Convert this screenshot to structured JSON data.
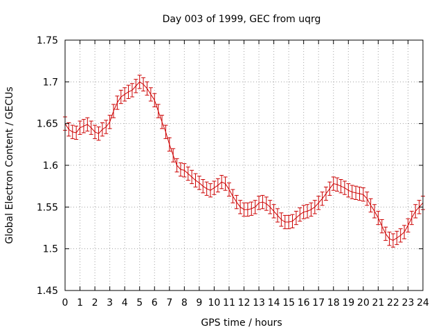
{
  "chart_data": {
    "type": "line",
    "title": "Day 003 of 1999, GEC from uqrg",
    "xlabel": "GPS time / hours",
    "ylabel": "Global Electron Content / GECUs",
    "xlim": [
      0,
      24
    ],
    "ylim": [
      1.45,
      1.75
    ],
    "grid": true,
    "series_color": "#cc0000",
    "x_ticks": [
      "0",
      "1",
      "2",
      "3",
      "4",
      "5",
      "6",
      "7",
      "8",
      "9",
      "10",
      "11",
      "12",
      "13",
      "14",
      "15",
      "16",
      "17",
      "18",
      "19",
      "20",
      "21",
      "22",
      "23",
      "24"
    ],
    "y_ticks": [
      "1.45",
      "1.5",
      "1.55",
      "1.6",
      "1.65",
      "1.7",
      "1.75"
    ],
    "error": 0.008,
    "series": [
      {
        "name": "GEC",
        "x": [
          0,
          0.25,
          0.5,
          0.75,
          1,
          1.25,
          1.5,
          1.75,
          2,
          2.25,
          2.5,
          2.75,
          3,
          3.25,
          3.5,
          3.75,
          4,
          4.25,
          4.5,
          4.75,
          5,
          5.25,
          5.5,
          5.75,
          6,
          6.25,
          6.5,
          6.75,
          7,
          7.25,
          7.5,
          7.75,
          8,
          8.25,
          8.5,
          8.75,
          9,
          9.25,
          9.5,
          9.75,
          10,
          10.25,
          10.5,
          10.75,
          11,
          11.25,
          11.5,
          11.75,
          12,
          12.25,
          12.5,
          12.75,
          13,
          13.25,
          13.5,
          13.75,
          14,
          14.25,
          14.5,
          14.75,
          15,
          15.25,
          15.5,
          15.75,
          16,
          16.25,
          16.5,
          16.75,
          17,
          17.25,
          17.5,
          17.75,
          18,
          18.25,
          18.5,
          18.75,
          19,
          19.25,
          19.5,
          19.75,
          20,
          20.25,
          20.5,
          20.75,
          21,
          21.25,
          21.5,
          21.75,
          22,
          22.25,
          22.5,
          22.75,
          23,
          23.25,
          23.5,
          23.75,
          24
        ],
        "values": [
          1.65,
          1.643,
          1.64,
          1.639,
          1.645,
          1.647,
          1.649,
          1.645,
          1.64,
          1.638,
          1.643,
          1.646,
          1.652,
          1.665,
          1.675,
          1.682,
          1.685,
          1.688,
          1.69,
          1.695,
          1.7,
          1.697,
          1.692,
          1.685,
          1.678,
          1.665,
          1.652,
          1.64,
          1.625,
          1.612,
          1.6,
          1.595,
          1.594,
          1.59,
          1.586,
          1.582,
          1.579,
          1.575,
          1.572,
          1.57,
          1.573,
          1.576,
          1.58,
          1.578,
          1.571,
          1.563,
          1.556,
          1.55,
          1.547,
          1.547,
          1.548,
          1.55,
          1.555,
          1.556,
          1.554,
          1.55,
          1.545,
          1.54,
          1.535,
          1.532,
          1.532,
          1.533,
          1.537,
          1.541,
          1.544,
          1.545,
          1.547,
          1.55,
          1.555,
          1.56,
          1.566,
          1.572,
          1.578,
          1.577,
          1.575,
          1.573,
          1.57,
          1.568,
          1.567,
          1.566,
          1.565,
          1.56,
          1.552,
          1.545,
          1.537,
          1.527,
          1.518,
          1.512,
          1.51,
          1.513,
          1.516,
          1.52,
          1.528,
          1.537,
          1.545,
          1.55,
          1.555
        ]
      }
    ]
  }
}
